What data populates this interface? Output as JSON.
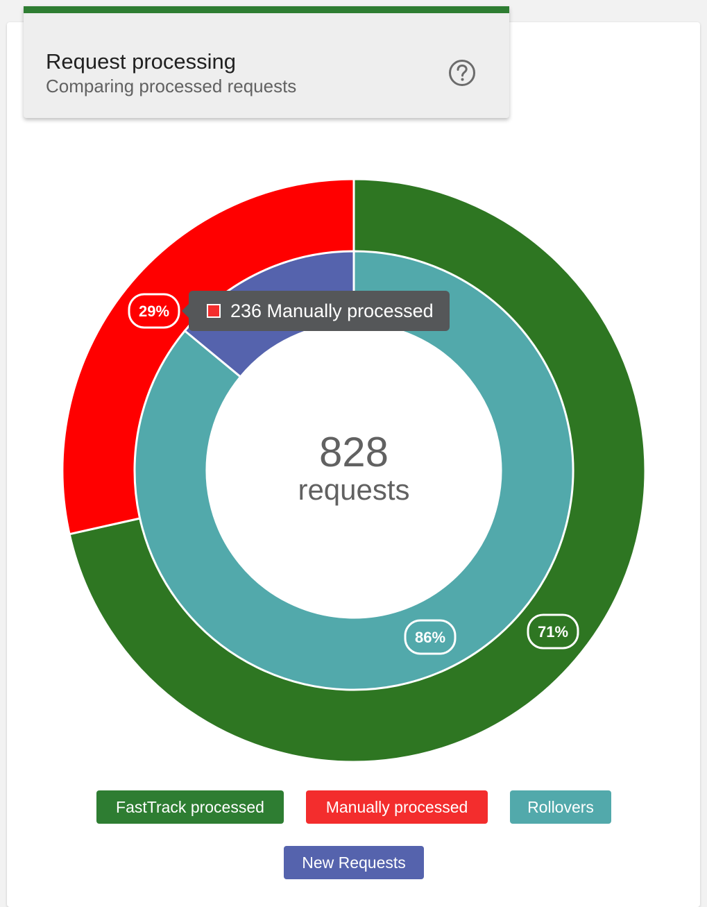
{
  "header": {
    "title": "Request processing",
    "subtitle": "Comparing processed requests",
    "help_icon": "help-circle-icon",
    "accent": "#2e7d32"
  },
  "center": {
    "value": "828",
    "unit": "requests"
  },
  "tooltip": {
    "text": "236 Manually processed",
    "color": "#f32d2d"
  },
  "legend": [
    {
      "label": "FastTrack processed",
      "color": "#2e7d32"
    },
    {
      "label": "Manually processed",
      "color": "#f32d2d"
    },
    {
      "label": "Rollovers",
      "color": "#52a9ab"
    },
    {
      "label": "New Requests",
      "color": "#5563ad"
    }
  ],
  "chart_data": {
    "type": "doughnut",
    "total": 828,
    "rings": [
      {
        "ring": "outer",
        "segments": [
          {
            "name": "FastTrack processed",
            "value": 592,
            "percent_label": "71%",
            "color": "#2e7622"
          },
          {
            "name": "Manually processed",
            "value": 236,
            "percent_label": "29%",
            "color": "#ff0000"
          }
        ]
      },
      {
        "ring": "inner",
        "segments": [
          {
            "name": "Rollovers",
            "value": 712,
            "percent_label": "86%",
            "color": "#52a9ab"
          },
          {
            "name": "New Requests",
            "value": 116,
            "percent_label": "",
            "color": "#5563ad"
          }
        ]
      }
    ]
  }
}
